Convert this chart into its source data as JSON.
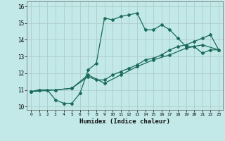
{
  "xlabel": "Humidex (Indice chaleur)",
  "ylabel": "",
  "bg_color": "#c2e8e8",
  "grid_color": "#b0cccc",
  "line_color": "#1a6b5a",
  "xlim": [
    -0.5,
    23.5
  ],
  "ylim": [
    9.8,
    16.3
  ],
  "xticks": [
    0,
    1,
    2,
    3,
    4,
    5,
    6,
    7,
    8,
    9,
    10,
    11,
    12,
    13,
    14,
    15,
    16,
    17,
    18,
    19,
    20,
    21,
    22,
    23
  ],
  "yticks": [
    10,
    11,
    12,
    13,
    14,
    15,
    16
  ],
  "series1_x": [
    0,
    1,
    2,
    3,
    4,
    5,
    6,
    7,
    8,
    9,
    10,
    11,
    12,
    13,
    14,
    15,
    16,
    17,
    18,
    19,
    20,
    21,
    22,
    23
  ],
  "series1_y": [
    10.9,
    11.0,
    11.0,
    10.4,
    10.2,
    10.2,
    10.8,
    12.2,
    12.6,
    15.3,
    15.2,
    15.4,
    15.5,
    15.6,
    14.6,
    14.6,
    14.9,
    14.6,
    14.1,
    13.6,
    13.6,
    13.2,
    13.4,
    13.4
  ],
  "series2_x": [
    0,
    1,
    3,
    5,
    7,
    8,
    9,
    10,
    11,
    12,
    13,
    14,
    15,
    16,
    17,
    18,
    19,
    20,
    21,
    22,
    23
  ],
  "series2_y": [
    10.9,
    11.0,
    11.0,
    11.1,
    11.8,
    11.6,
    11.6,
    11.9,
    12.1,
    12.3,
    12.5,
    12.8,
    12.9,
    13.1,
    13.4,
    13.6,
    13.7,
    13.9,
    14.1,
    14.3,
    13.4
  ],
  "series3_x": [
    0,
    3,
    5,
    7,
    9,
    11,
    13,
    15,
    17,
    19,
    21,
    23
  ],
  "series3_y": [
    10.9,
    11.0,
    11.1,
    11.9,
    11.4,
    11.9,
    12.4,
    12.8,
    13.1,
    13.5,
    13.7,
    13.4
  ]
}
